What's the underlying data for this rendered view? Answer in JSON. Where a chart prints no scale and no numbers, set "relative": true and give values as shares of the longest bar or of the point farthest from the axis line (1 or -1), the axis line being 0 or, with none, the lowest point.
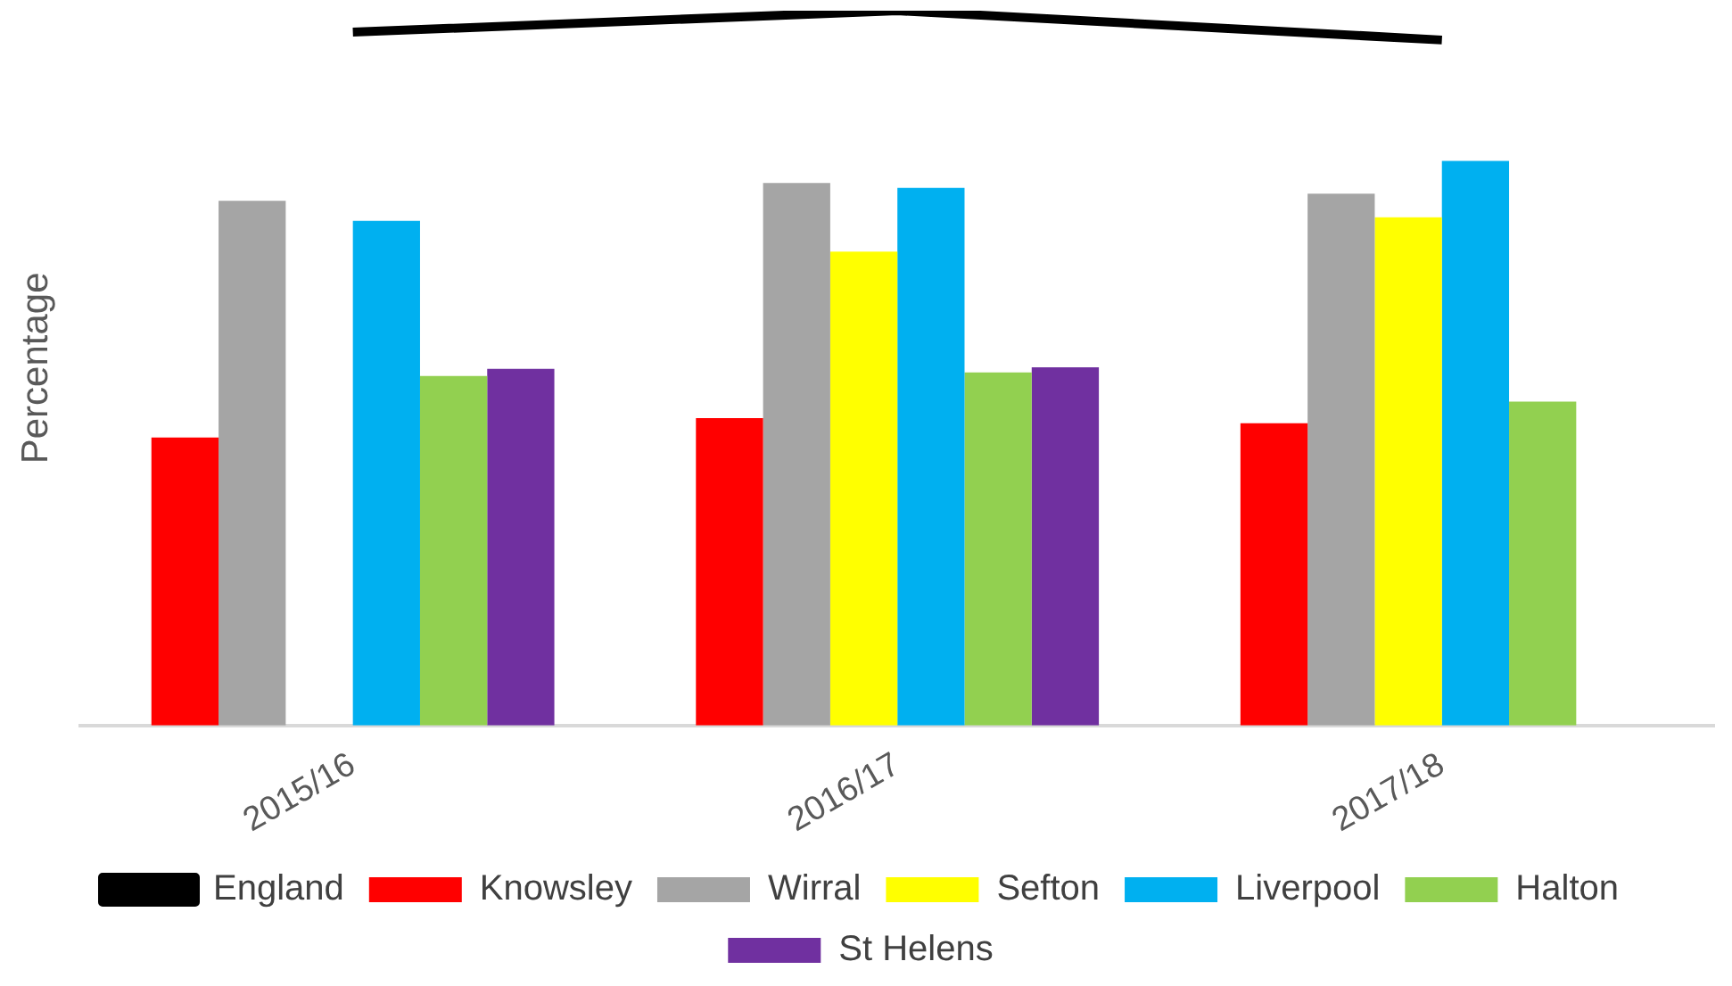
{
  "chart_data": {
    "type": "bar",
    "relative": true,
    "ylabel": "Percentage",
    "legend": "bottom",
    "categories": [
      "2015/16",
      "2016/17",
      "2017/18"
    ],
    "series": [
      {
        "name": "Knowsley",
        "color": "#ff0000",
        "values": [
          0.403,
          0.43,
          0.423
        ]
      },
      {
        "name": "Wirral",
        "color": "#a5a5a5",
        "values": [
          0.734,
          0.759,
          0.744
        ]
      },
      {
        "name": "Sefton",
        "color": "#ffff00",
        "values": [
          null,
          0.663,
          0.711
        ]
      },
      {
        "name": "Liverpool",
        "color": "#00b0f0",
        "values": [
          0.706,
          0.752,
          0.79
        ]
      },
      {
        "name": "Halton",
        "color": "#92d050",
        "values": [
          0.489,
          0.494,
          0.453
        ]
      },
      {
        "name": "St Helens",
        "color": "#7030a0",
        "values": [
          0.499,
          0.501,
          null
        ]
      },
      {
        "name": "England",
        "type": "line",
        "color": "#000000",
        "values": [
          0.97,
          1,
          0.959
        ]
      }
    ]
  }
}
